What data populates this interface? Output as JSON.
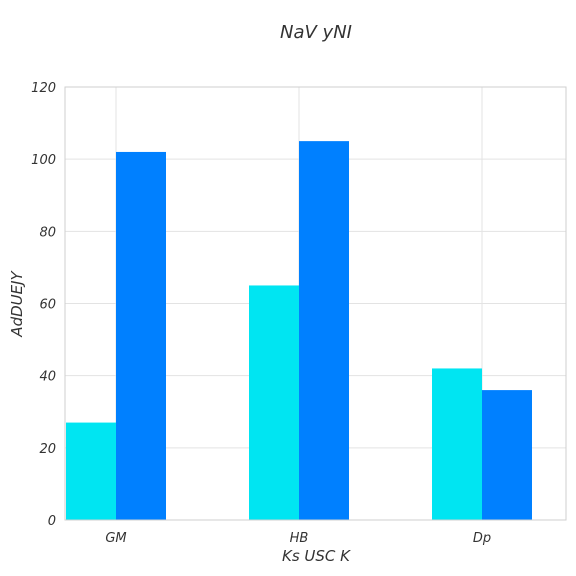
{
  "chart_data": {
    "type": "bar",
    "title": "NaV yNI",
    "xlabel": "Ks USC K",
    "ylabel": "AdDUEJY",
    "categories": [
      "GM",
      "HB",
      "Dp"
    ],
    "series": [
      {
        "values": [
          27,
          65,
          42
        ],
        "color": "#00E5F2"
      },
      {
        "values": [
          102,
          105,
          36
        ],
        "color": "#0080FF"
      }
    ],
    "ylim": [
      0,
      120
    ],
    "yticks": [
      0,
      20,
      40,
      60,
      80,
      100,
      120
    ],
    "grid": true,
    "legend": "none"
  }
}
